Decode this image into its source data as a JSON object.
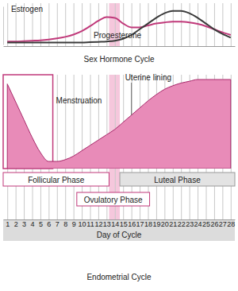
{
  "chart_data": [
    {
      "type": "line",
      "title": "Sex Hormone Cycle",
      "x": [
        1,
        2,
        3,
        4,
        5,
        6,
        7,
        8,
        9,
        10,
        11,
        12,
        13,
        14,
        15,
        16,
        17,
        18,
        19,
        20,
        21,
        22,
        23,
        24,
        25,
        26,
        27,
        28
      ],
      "xlim": [
        0.5,
        28.5
      ],
      "xticks": [
        1,
        2,
        3,
        4,
        5,
        6,
        7,
        8,
        9,
        10,
        11,
        12,
        13,
        14,
        15,
        16,
        17,
        18,
        19,
        20,
        21,
        22,
        23,
        24,
        25,
        26,
        27,
        28
      ],
      "ylim": [
        0,
        100
      ],
      "yticks": [],
      "grid": true,
      "tick_labels": false,
      "highlight": [
        13.3,
        14.6
      ],
      "series": [
        {
          "name": "Estrogen",
          "color": "#c0397a",
          "values": [
            8,
            8,
            9,
            10,
            11,
            13,
            16,
            20,
            26,
            35,
            48,
            62,
            72,
            70,
            55,
            45,
            45,
            50,
            55,
            58,
            60,
            60,
            58,
            54,
            48,
            40,
            32,
            25
          ]
        },
        {
          "name": "Progesterone",
          "color": "#3a3a3a",
          "values": [
            5,
            5,
            5,
            5,
            5,
            5,
            5,
            5,
            5,
            5,
            6,
            7,
            8,
            10,
            15,
            25,
            40,
            55,
            70,
            82,
            88,
            88,
            82,
            70,
            55,
            40,
            28,
            18
          ]
        }
      ]
    },
    {
      "type": "area",
      "title": "Endometrial Cycle",
      "xlabel": "Day of Cycle",
      "x": [
        1,
        2,
        3,
        4,
        5,
        6,
        7,
        8,
        9,
        10,
        11,
        12,
        13,
        14,
        15,
        16,
        17,
        18,
        19,
        20,
        21,
        22,
        23,
        24,
        25,
        26,
        27,
        28
      ],
      "xlim": [
        0.5,
        28.5
      ],
      "xticks": [
        1,
        2,
        3,
        4,
        5,
        6,
        7,
        8,
        9,
        10,
        11,
        12,
        13,
        14,
        15,
        16,
        17,
        18,
        19,
        20,
        21,
        22,
        23,
        24,
        25,
        26,
        27,
        28
      ],
      "ylim": [
        0,
        100
      ],
      "yticks": [],
      "grid": true,
      "tick_labels": "x",
      "highlight": [
        13.3,
        14.6
      ],
      "series": [
        {
          "name": "Uterine lining",
          "color": "#e88bb8",
          "values": [
            95,
            75,
            55,
            35,
            18,
            8,
            8,
            10,
            14,
            20,
            26,
            32,
            38,
            44,
            52,
            60,
            68,
            76,
            83,
            89,
            93,
            96,
            98,
            100,
            100,
            100,
            100,
            100
          ]
        }
      ],
      "menstruation": {
        "label": "Menstruation",
        "start": 0.5,
        "end": 6.5
      },
      "phases": [
        {
          "label": "Follicular Phase",
          "start": 0.5,
          "end": 13.3,
          "color": "#ffffff"
        },
        {
          "label": "Luteal Phase",
          "start": 14.6,
          "end": 28.5,
          "color": "#e3e3e3"
        },
        {
          "label": "Ovulatory Phase",
          "start": 9.4,
          "end": 18.2,
          "color": "#ffffff"
        }
      ]
    }
  ]
}
